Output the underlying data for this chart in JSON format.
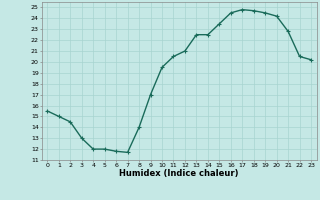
{
  "x": [
    0,
    1,
    2,
    3,
    4,
    5,
    6,
    7,
    8,
    9,
    10,
    11,
    12,
    13,
    14,
    15,
    16,
    17,
    18,
    19,
    20,
    21,
    22,
    23
  ],
  "y": [
    15.5,
    15.0,
    14.5,
    13.0,
    12.0,
    12.0,
    11.8,
    11.7,
    14.0,
    17.0,
    19.5,
    20.5,
    21.0,
    22.5,
    22.5,
    23.5,
    24.5,
    24.8,
    24.7,
    24.5,
    24.2,
    22.8,
    20.5,
    20.2
  ],
  "xlim": [
    -0.5,
    23.5
  ],
  "ylim": [
    11,
    25.5
  ],
  "yticks": [
    11,
    12,
    13,
    14,
    15,
    16,
    17,
    18,
    19,
    20,
    21,
    22,
    23,
    24,
    25
  ],
  "xticks": [
    0,
    1,
    2,
    3,
    4,
    5,
    6,
    7,
    8,
    9,
    10,
    11,
    12,
    13,
    14,
    15,
    16,
    17,
    18,
    19,
    20,
    21,
    22,
    23
  ],
  "xlabel": "Humidex (Indice chaleur)",
  "line_color": "#1a6b5a",
  "marker": "+",
  "bg_color": "#c5e8e5",
  "grid_color": "#a8d4d0",
  "marker_size": 3,
  "linewidth": 1.0
}
